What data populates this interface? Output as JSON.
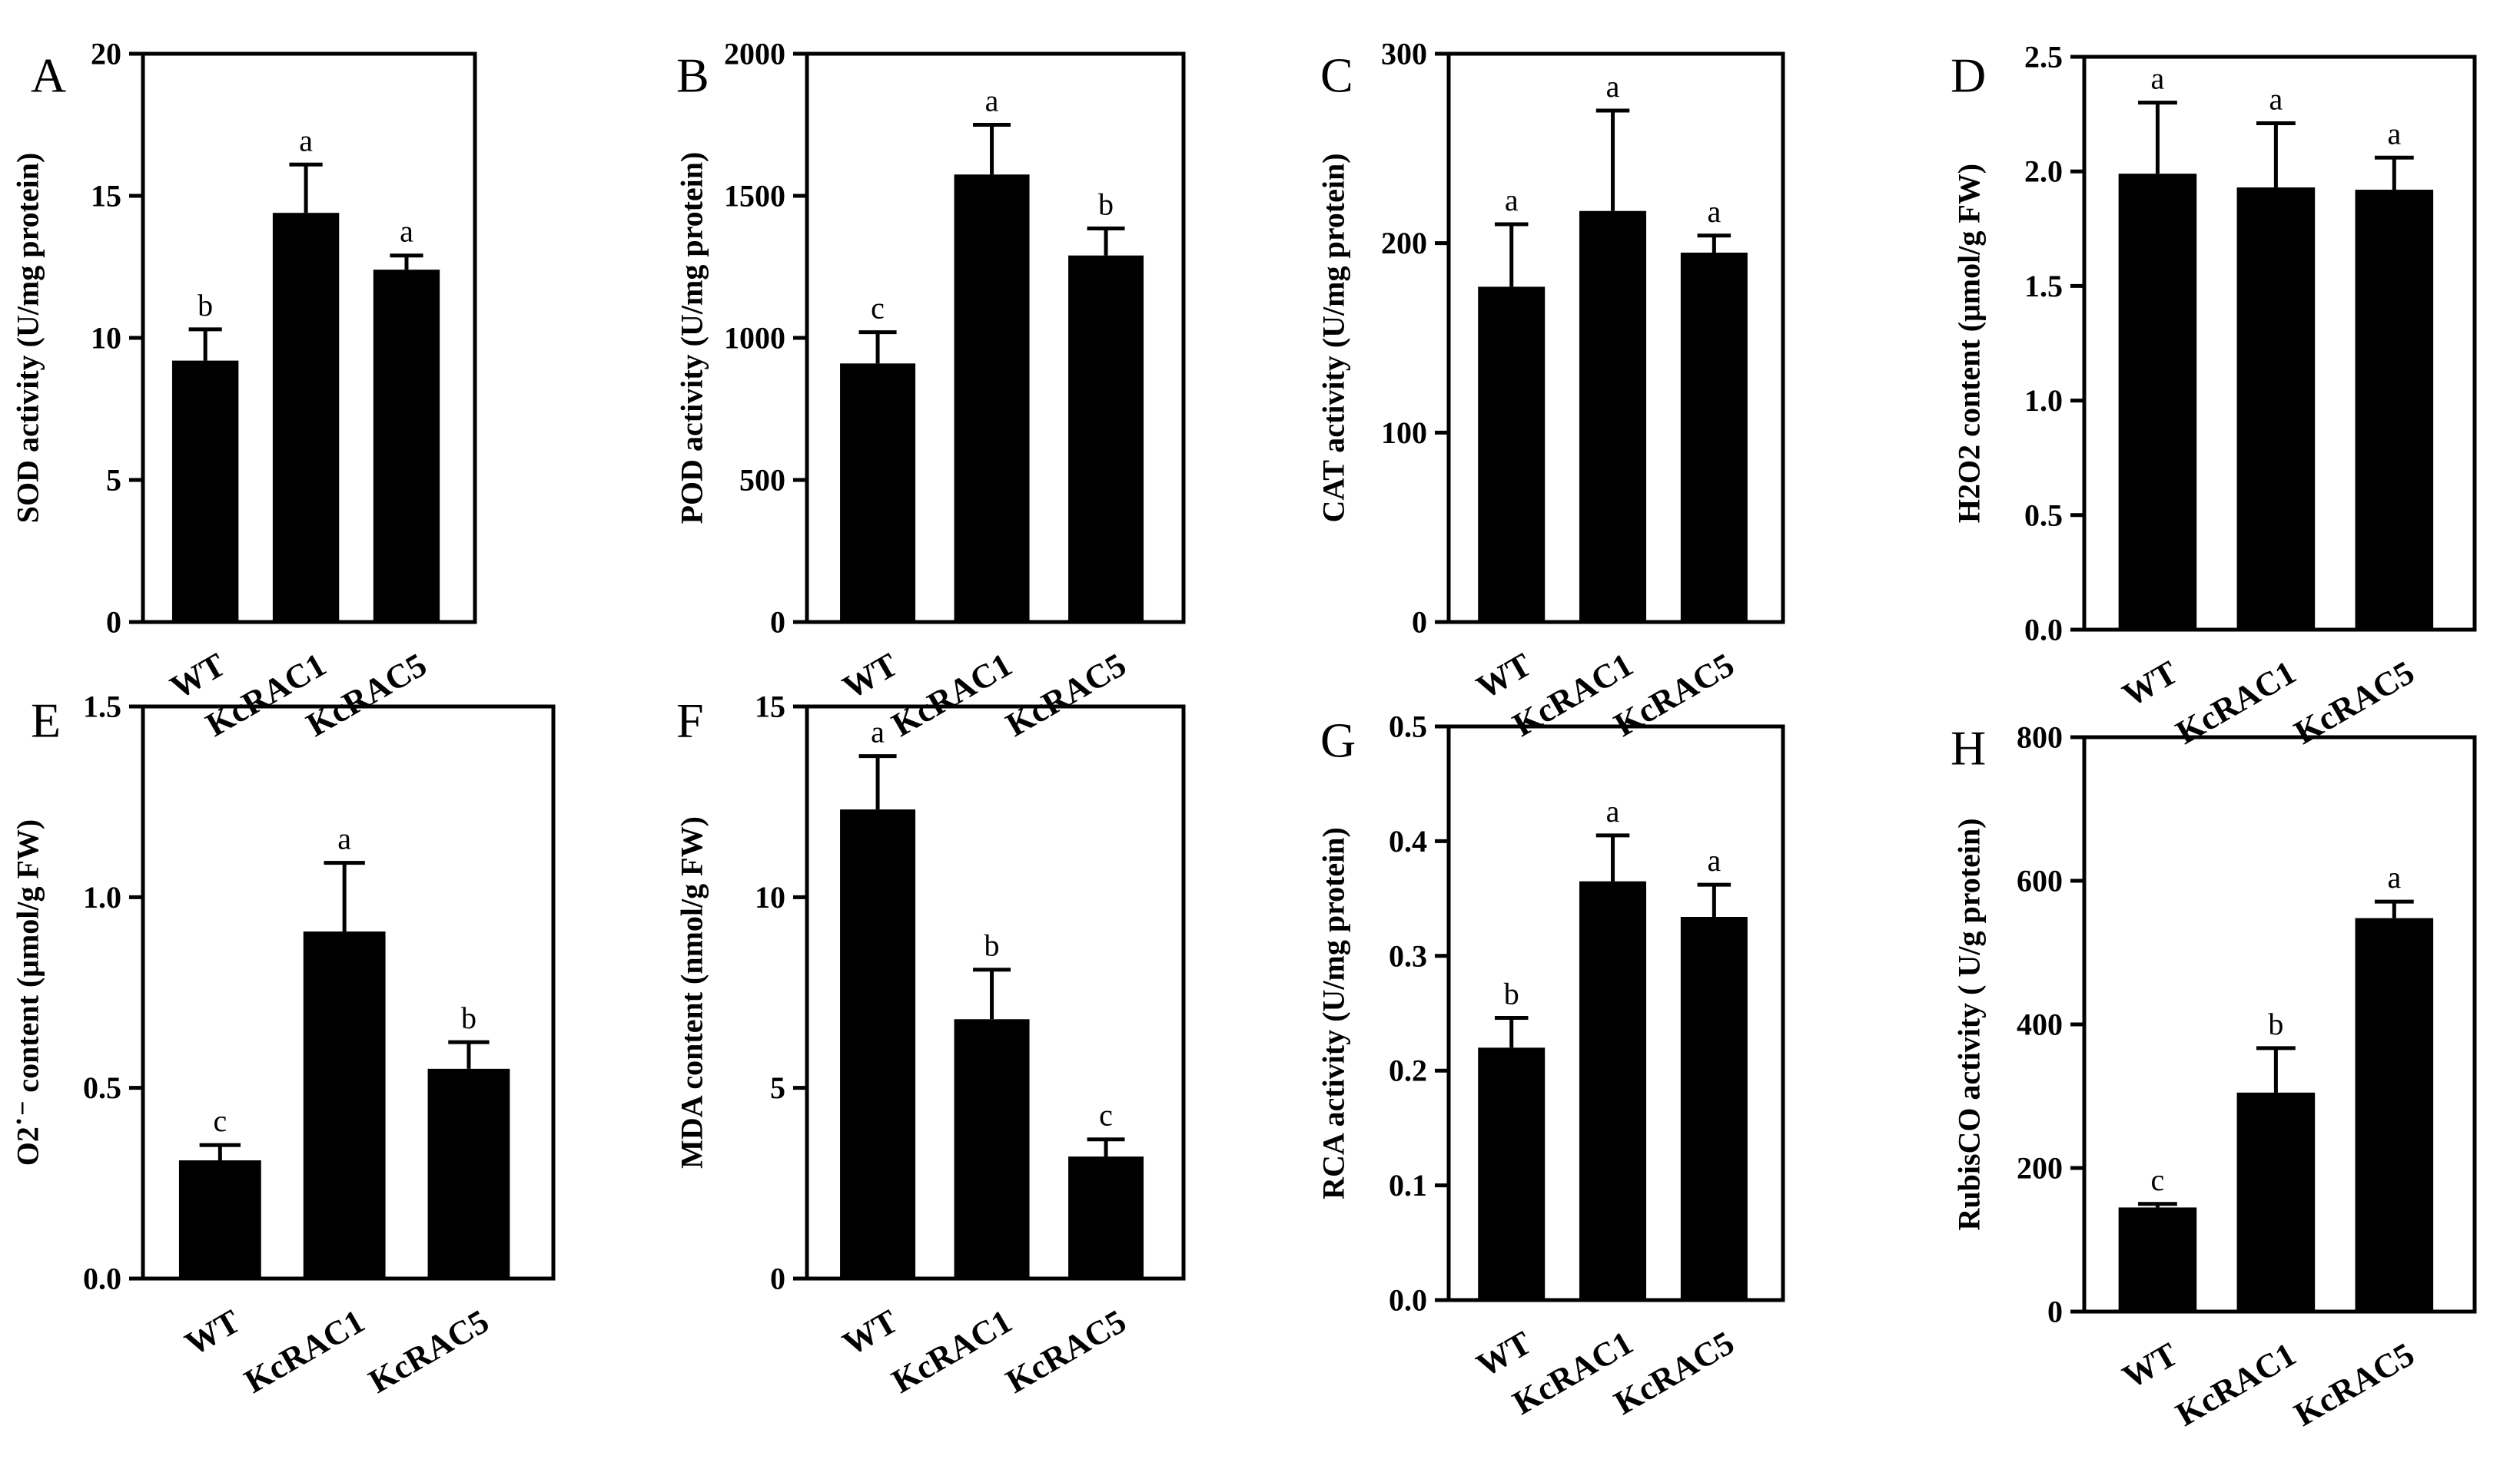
{
  "chart_data": [
    {
      "panel": "A",
      "type": "bar",
      "categories": [
        "WT",
        "KcRAC1",
        "KcRAC5"
      ],
      "values": [
        9.2,
        14.4,
        12.4
      ],
      "errors": [
        1.1,
        1.7,
        0.5
      ],
      "labels": [
        "b",
        "a",
        "a"
      ],
      "ylabel": "SOD activity (U/mg protein)",
      "ylim": [
        0,
        20
      ],
      "yticks": [
        0,
        5,
        10,
        15,
        20
      ],
      "ytick_labels": [
        "0",
        "5",
        "10",
        "15",
        "20"
      ]
    },
    {
      "panel": "B",
      "type": "bar",
      "categories": [
        "WT",
        "KcRAC1",
        "KcRAC5"
      ],
      "values": [
        910,
        1575,
        1290
      ],
      "errors": [
        110,
        175,
        95
      ],
      "labels": [
        "c",
        "a",
        "b"
      ],
      "ylabel": "POD activity (U/mg protein)",
      "ylim": [
        0,
        2000
      ],
      "yticks": [
        0,
        500,
        1000,
        1500,
        2000
      ],
      "ytick_labels": [
        "0",
        "500",
        "1000",
        "1500",
        "2000"
      ]
    },
    {
      "panel": "C",
      "type": "bar",
      "categories": [
        "WT",
        "KcRAC1",
        "KcRAC5"
      ],
      "values": [
        177,
        217,
        195
      ],
      "errors": [
        33,
        53,
        9
      ],
      "labels": [
        "a",
        "a",
        "a"
      ],
      "ylabel": "CAT activity (U/mg protein)",
      "ylim": [
        0,
        300
      ],
      "yticks": [
        0,
        100,
        200,
        300
      ],
      "ytick_labels": [
        "0",
        "100",
        "200",
        "300"
      ]
    },
    {
      "panel": "D",
      "type": "bar",
      "categories": [
        "WT",
        "KcRAC1",
        "KcRAC5"
      ],
      "values": [
        1.99,
        1.93,
        1.92
      ],
      "errors": [
        0.31,
        0.28,
        0.14
      ],
      "labels": [
        "a",
        "a",
        "a"
      ],
      "ylabel": "H2O2 content (μmol/g FW)",
      "ylim": [
        0,
        2.5
      ],
      "yticks": [
        0,
        0.5,
        1,
        1.5,
        2,
        2.5
      ],
      "ytick_labels": [
        "0.0",
        "0.5",
        "1.0",
        "1.5",
        "2.0",
        "2.5"
      ]
    },
    {
      "panel": "E",
      "type": "bar",
      "categories": [
        "WT",
        "KcRAC1",
        "KcRAC5"
      ],
      "values": [
        0.31,
        0.91,
        0.55
      ],
      "errors": [
        0.04,
        0.18,
        0.07
      ],
      "labels": [
        "c",
        "a",
        "b"
      ],
      "ylabel": "O2˙⁻ content (μmol/g FW)",
      "ylim": [
        0,
        1.5
      ],
      "yticks": [
        0,
        0.5,
        1,
        1.5
      ],
      "ytick_labels": [
        "0.0",
        "0.5",
        "1.0",
        "1.5"
      ]
    },
    {
      "panel": "F",
      "type": "bar",
      "categories": [
        "WT",
        "KcRAC1",
        "KcRAC5"
      ],
      "values": [
        12.3,
        6.8,
        3.2
      ],
      "errors": [
        1.4,
        1.3,
        0.45
      ],
      "labels": [
        "a",
        "b",
        "c"
      ],
      "ylabel": "MDA content (nmol/g FW)",
      "ylim": [
        0,
        15
      ],
      "yticks": [
        0,
        5,
        10,
        15
      ],
      "ytick_labels": [
        "0",
        "5",
        "10",
        "15"
      ]
    },
    {
      "panel": "G",
      "type": "bar",
      "categories": [
        "WT",
        "KcRAC1",
        "KcRAC5"
      ],
      "values": [
        0.22,
        0.365,
        0.334
      ],
      "errors": [
        0.026,
        0.04,
        0.028
      ],
      "labels": [
        "b",
        "a",
        "a"
      ],
      "ylabel": "RCA activity (U/mg protein)",
      "ylim": [
        0,
        0.5
      ],
      "yticks": [
        0,
        0.1,
        0.2,
        0.3,
        0.4,
        0.5
      ],
      "ytick_labels": [
        "0.0",
        "0.1",
        "0.2",
        "0.3",
        "0.4",
        "0.5"
      ]
    },
    {
      "panel": "H",
      "type": "bar",
      "categories": [
        "WT",
        "KcRAC1",
        "KcRAC5"
      ],
      "values": [
        145,
        305,
        548
      ],
      "errors": [
        5,
        62,
        23
      ],
      "labels": [
        "c",
        "b",
        "a"
      ],
      "ylabel": "RubisCO activity ( U/g protein)",
      "ylim": [
        0,
        800
      ],
      "yticks": [
        0,
        200,
        400,
        600,
        800
      ],
      "ytick_labels": [
        "0",
        "200",
        "400",
        "600",
        "800"
      ]
    }
  ],
  "colors": {
    "bar": "#000000",
    "axis": "#000000",
    "background": "#ffffff"
  }
}
